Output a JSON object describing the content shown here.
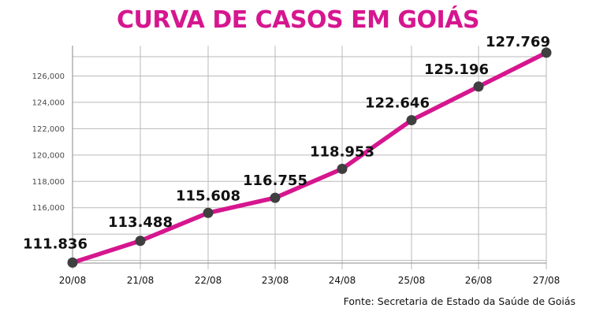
{
  "chart_data": {
    "type": "line",
    "title": "CURVA DE CASOS EM GOIÁS",
    "categories": [
      "20/08",
      "21/08",
      "22/08",
      "23/08",
      "24/08",
      "25/08",
      "26/08",
      "27/08"
    ],
    "series": [
      {
        "values": [
          111836,
          113488,
          115608,
          116755,
          118953,
          122646,
          125196,
          127769
        ]
      }
    ],
    "data_labels": [
      "111.836",
      "113.488",
      "115.608",
      "116.755",
      "118.953",
      "122.646",
      "125.196",
      "127.769"
    ],
    "y_ticks": [
      116000,
      118000,
      120000,
      122000,
      124000,
      126000
    ],
    "y_tick_labels": [
      "116,000",
      "118,000",
      "120,000",
      "122,000",
      "124,000",
      "126,000"
    ],
    "ylim": [
      111800,
      128300
    ],
    "grid": true,
    "source": "Fonte: Secretaria de Estado da Saúde de Goiás",
    "colors": {
      "title": "#d6168f",
      "line": "#d6168f",
      "marker": "#3f3f3f",
      "grid": "#b9b9b9"
    }
  }
}
